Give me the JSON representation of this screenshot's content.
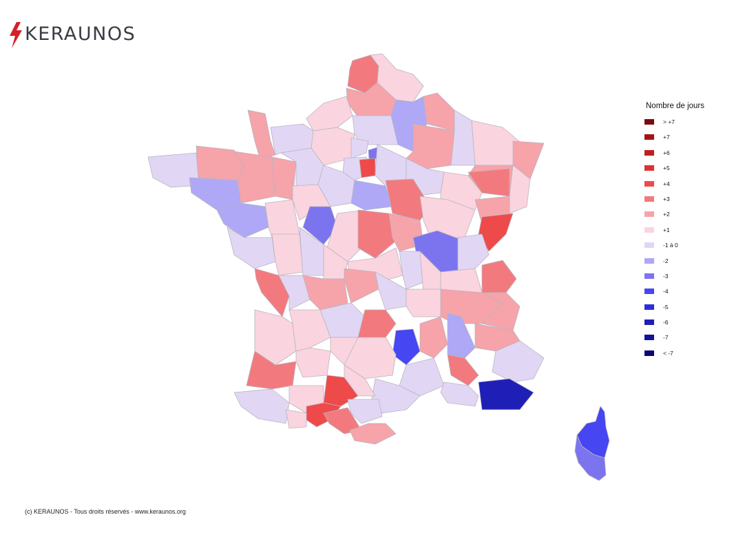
{
  "brand": {
    "name": "KERAUNOS",
    "accent_color": "#d4202a",
    "logo_icon": "lightning-bolt-icon"
  },
  "legend": {
    "title": "Nombre de jours",
    "items": [
      {
        "label": "> +7",
        "color": "#7a0a0a"
      },
      {
        "label": "+7",
        "color": "#a31515"
      },
      {
        "label": "+6",
        "color": "#c21e1e"
      },
      {
        "label": "+5",
        "color": "#dc3232"
      },
      {
        "label": "+4",
        "color": "#ee4a4a"
      },
      {
        "label": "+3",
        "color": "#f27a7e"
      },
      {
        "label": "+2",
        "color": "#f6a3aa"
      },
      {
        "label": "+1",
        "color": "#fad4df"
      },
      {
        "label": "-1 à 0",
        "color": "#e2d6f5"
      },
      {
        "label": "-2",
        "color": "#aea8f6"
      },
      {
        "label": "-3",
        "color": "#7c74ef"
      },
      {
        "label": "-4",
        "color": "#4646f2"
      },
      {
        "label": "-5",
        "color": "#2d2ddc"
      },
      {
        "label": "-6",
        "color": "#1f1fb8"
      },
      {
        "label": "-7",
        "color": "#12129a"
      },
      {
        "label": "< -7",
        "color": "#080870"
      }
    ]
  },
  "footer": {
    "copyright": "(c) KERAUNOS - Tous droits réservés - www.keraunos.org"
  }
}
